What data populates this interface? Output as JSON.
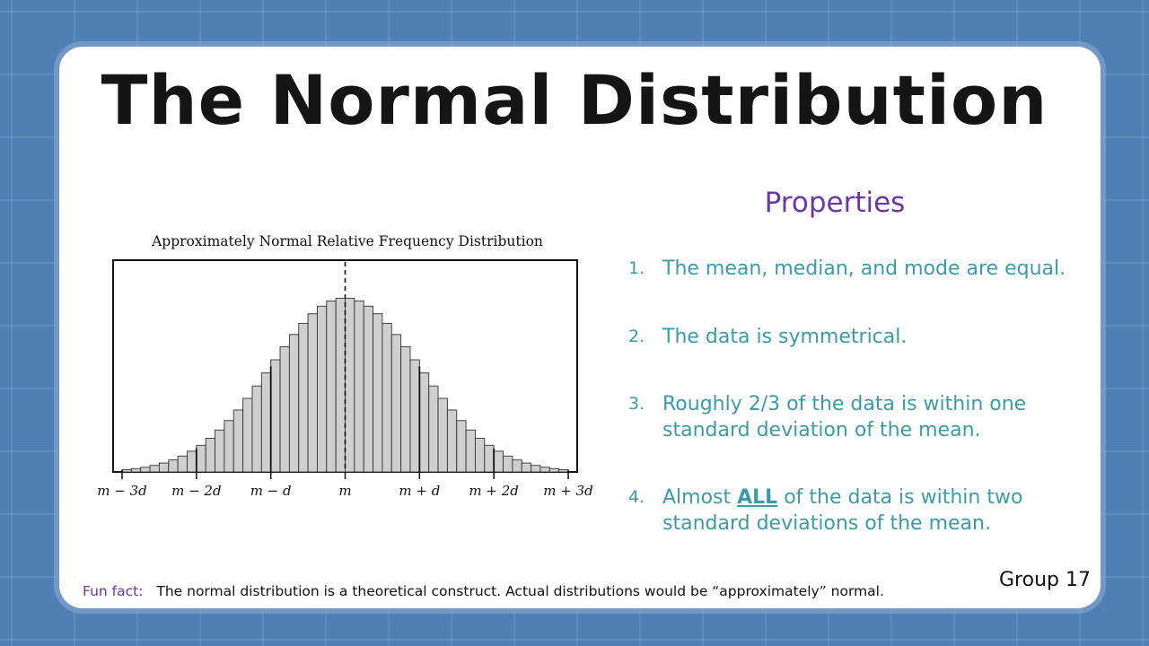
{
  "slide": {
    "title": "The Normal Distribution",
    "properties_title": "Properties",
    "properties": [
      {
        "num": "1.",
        "text": "The mean, median, and mode are equal."
      },
      {
        "num": "2.",
        "text": "The data is symmetrical."
      },
      {
        "num": "3.",
        "text": "Roughly 2/3 of the data is within one standard deviation of the mean."
      },
      {
        "num": "4.",
        "text_before": "Almost ",
        "text_emphasis": "ALL",
        "text_after": " of the data is within two standard deviations of the mean."
      }
    ],
    "fun_fact_label": "Fun fact:",
    "fun_fact_text": "The normal distribution is a theoretical construct. Actual distributions would be “approximately” normal.",
    "group_label": "Group 17"
  },
  "chart_data": {
    "type": "bar",
    "title": "Approximately Normal Relative Frequency Distribution",
    "xlabel": "",
    "ylabel": "",
    "x_range_sd": [
      -3,
      3
    ],
    "bins": 48,
    "tick_labels": [
      "m − 3d",
      "m − 2d",
      "m − d",
      "m",
      "m + d",
      "m + 2d",
      "m + 3d"
    ],
    "tick_positions_sd": [
      -3,
      -2,
      -1,
      0,
      1,
      2,
      3
    ],
    "mean_line": "dashed",
    "bar_color": "#cfcfcf",
    "bar_stroke": "#333333",
    "grid": false,
    "legend": "none"
  }
}
